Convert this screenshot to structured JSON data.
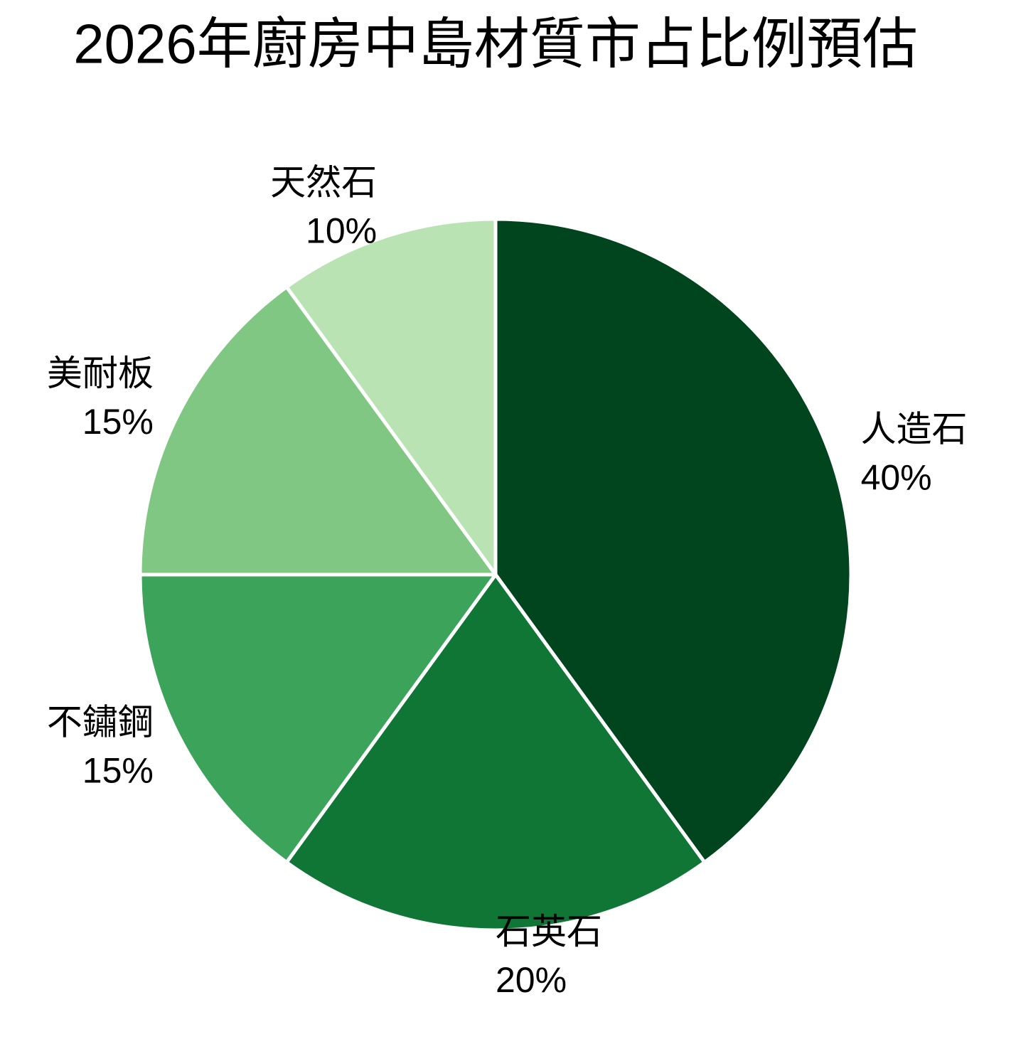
{
  "chart_data": {
    "type": "pie",
    "title": "2026年廚房中島材質市占比例預估",
    "categories": [
      "人造石",
      "石英石",
      "不鏽鋼",
      "美耐板",
      "天然石"
    ],
    "values": [
      40,
      20,
      15,
      15,
      10
    ],
    "value_labels": [
      "40%",
      "20%",
      "15%",
      "15%",
      "10%"
    ],
    "colors": [
      "#00451d",
      "#107635",
      "#3ca35a",
      "#80c783",
      "#b9e3b3"
    ],
    "start_angle": 90,
    "direction": "clockwise"
  }
}
